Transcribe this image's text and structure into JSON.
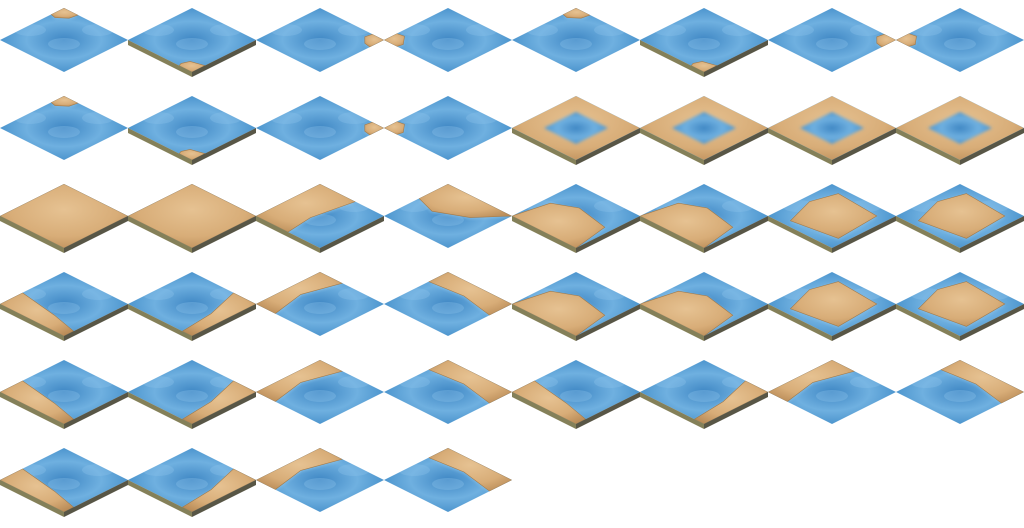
{
  "sheet": {
    "kind": "isometric terrain tileset",
    "columns": 8,
    "rows": 6,
    "background": "#ffffff",
    "colors": {
      "water": "#4f97cf",
      "water_light": "#8ec4ea",
      "water_dark": "#2f6fae",
      "sand": "#d8ad78",
      "sand_light": "#ead0a4",
      "sand_dark": "#a27a4a",
      "edge_top": "#6e6a3c",
      "edge_bottom": "#2e2c18"
    },
    "tiles": [
      {
        "name": "tile-water-islet-top",
        "sand": "n-mound"
      },
      {
        "name": "tile-water-islet-bottom",
        "sand": "s-mound"
      },
      {
        "name": "tile-water-islet-right",
        "sand": "e-mound"
      },
      {
        "name": "tile-water-islet-left",
        "sand": "w-mound"
      },
      {
        "name": "tile-water-islet-top-b",
        "sand": "n-mound"
      },
      {
        "name": "tile-water-islet-bottom-b",
        "sand": "s-mound"
      },
      {
        "name": "tile-water-islet-right-b",
        "sand": "e-mound"
      },
      {
        "name": "tile-water-islet-left-b",
        "sand": "w-mound"
      },
      {
        "name": "tile-water-islet-top-c",
        "sand": "n-mound"
      },
      {
        "name": "tile-water-islet-bottom-c",
        "sand": "s-mound"
      },
      {
        "name": "tile-water-islet-right-c",
        "sand": "e-mound"
      },
      {
        "name": "tile-water-islet-left-c",
        "sand": "w-mound"
      },
      {
        "name": "tile-sand-lagoon-a",
        "sand": "lagoon"
      },
      {
        "name": "tile-sand-lagoon-b",
        "sand": "lagoon"
      },
      {
        "name": "tile-sand-lagoon-c",
        "sand": "lagoon"
      },
      {
        "name": "tile-sand-lagoon-d",
        "sand": "lagoon"
      },
      {
        "name": "tile-sand-full-a",
        "sand": "full"
      },
      {
        "name": "tile-sand-full-b",
        "sand": "full"
      },
      {
        "name": "tile-sand-west-half",
        "sand": "west"
      },
      {
        "name": "tile-sand-north-half",
        "sand": "north"
      },
      {
        "name": "tile-sand-south-half",
        "sand": "south"
      },
      {
        "name": "tile-sand-south-half-b",
        "sand": "south"
      },
      {
        "name": "tile-sand-center",
        "sand": "center"
      },
      {
        "name": "tile-sand-center-b",
        "sand": "center"
      },
      {
        "name": "tile-sand-sw-edge",
        "sand": "sw-edge"
      },
      {
        "name": "tile-sand-se-edge",
        "sand": "se-edge"
      },
      {
        "name": "tile-sand-nw-edge",
        "sand": "nw-edge"
      },
      {
        "name": "tile-sand-ne-edge",
        "sand": "ne-edge"
      },
      {
        "name": "tile-sand-south-blob",
        "sand": "south"
      },
      {
        "name": "tile-sand-south-blob-b",
        "sand": "south"
      },
      {
        "name": "tile-sand-center-c",
        "sand": "center"
      },
      {
        "name": "tile-sand-center-d",
        "sand": "center"
      },
      {
        "name": "tile-sand-sw-wave",
        "sand": "sw-edge"
      },
      {
        "name": "tile-sand-se-wave",
        "sand": "se-edge"
      },
      {
        "name": "tile-sand-nw-blob",
        "sand": "nw-edge"
      },
      {
        "name": "tile-sand-ne-blob",
        "sand": "ne-edge"
      },
      {
        "name": "tile-sand-sw-wave-b",
        "sand": "sw-edge"
      },
      {
        "name": "tile-sand-se-wave-b",
        "sand": "se-edge"
      },
      {
        "name": "tile-sand-nw-blob-b",
        "sand": "nw-edge"
      },
      {
        "name": "tile-sand-ne-blob-b",
        "sand": "ne-edge"
      },
      {
        "name": "tile-sand-sw-strip",
        "sand": "sw-edge"
      },
      {
        "name": "tile-sand-se-strip",
        "sand": "se-edge"
      },
      {
        "name": "tile-sand-nw-strip",
        "sand": "nw-edge"
      },
      {
        "name": "tile-sand-ne-strip",
        "sand": "ne-edge"
      }
    ]
  }
}
